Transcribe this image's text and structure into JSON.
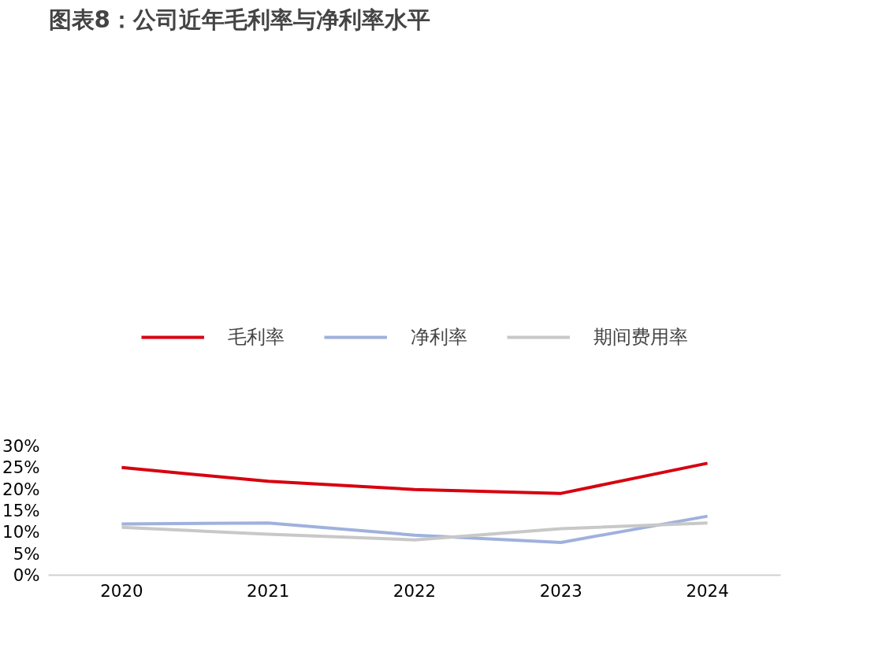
{
  "chart_data": {
    "type": "line",
    "title": "图表8：公司近年毛利率与净利率水平",
    "categories": [
      "2020",
      "2021",
      "2022",
      "2023",
      "2024"
    ],
    "series": [
      {
        "name": "毛利率",
        "color": "#d7000f",
        "values": [
          25.0,
          21.8,
          19.9,
          19.0,
          26.0
        ]
      },
      {
        "name": "净利率",
        "color": "#9fb1dc",
        "values": [
          11.9,
          12.1,
          9.3,
          7.6,
          13.7
        ]
      },
      {
        "name": "期间费用率",
        "color": "#c8c8c8",
        "values": [
          11.1,
          9.5,
          8.2,
          10.8,
          12.1
        ]
      }
    ],
    "ylim": [
      0,
      30
    ],
    "yticks": [
      {
        "value": 0,
        "label": "0%"
      },
      {
        "value": 5,
        "label": "5%"
      },
      {
        "value": 10,
        "label": "10%"
      },
      {
        "value": 15,
        "label": "15%"
      },
      {
        "value": 20,
        "label": "20%"
      },
      {
        "value": 25,
        "label": "25%"
      },
      {
        "value": 30,
        "label": "30%"
      }
    ],
    "grid": false,
    "legend": "top",
    "marker": "none",
    "line_style": "solid"
  }
}
